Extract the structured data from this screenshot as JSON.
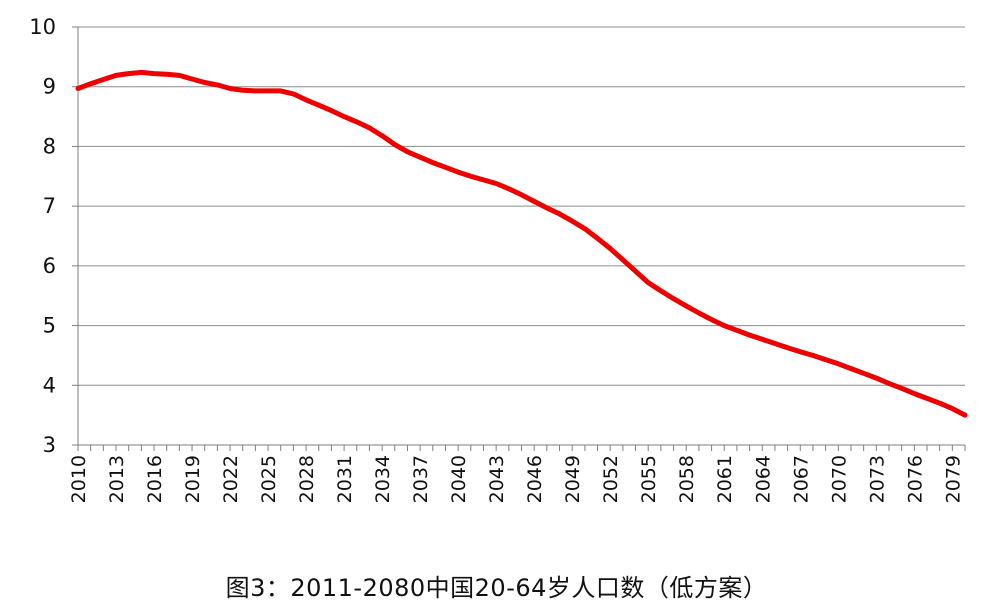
{
  "caption": "图3：2011-2080中国20-64岁人口数（低方案）",
  "colors": {
    "line": "#ee0000",
    "grid": "#8c8c8c",
    "axis": "#7f7f7f",
    "text": "#111111"
  },
  "chart_data": {
    "type": "line",
    "title": "",
    "xlabel": "",
    "ylabel": "",
    "ylim": [
      3,
      10
    ],
    "yticks": [
      3,
      4,
      5,
      6,
      7,
      8,
      9,
      10
    ],
    "xticks": [
      2010,
      2013,
      2016,
      2019,
      2022,
      2025,
      2028,
      2031,
      2034,
      2037,
      2040,
      2043,
      2046,
      2049,
      2052,
      2055,
      2058,
      2061,
      2064,
      2067,
      2070,
      2073,
      2076,
      2079
    ],
    "xlim": [
      2010,
      2080
    ],
    "grid": true,
    "legend": "none",
    "series": [
      {
        "name": "",
        "x": [
          2010,
          2011,
          2012,
          2013,
          2014,
          2015,
          2016,
          2017,
          2018,
          2019,
          2020,
          2021,
          2022,
          2023,
          2024,
          2025,
          2026,
          2027,
          2028,
          2029,
          2030,
          2031,
          2032,
          2033,
          2034,
          2035,
          2036,
          2037,
          2038,
          2039,
          2040,
          2041,
          2042,
          2043,
          2044,
          2045,
          2046,
          2047,
          2048,
          2049,
          2050,
          2051,
          2052,
          2053,
          2054,
          2055,
          2056,
          2057,
          2058,
          2059,
          2060,
          2061,
          2062,
          2063,
          2064,
          2065,
          2066,
          2067,
          2068,
          2069,
          2070,
          2071,
          2072,
          2073,
          2074,
          2075,
          2076,
          2077,
          2078,
          2079,
          2080
        ],
        "values": [
          8.97,
          9.05,
          9.12,
          9.19,
          9.22,
          9.24,
          9.22,
          9.21,
          9.19,
          9.13,
          9.07,
          9.03,
          8.97,
          8.94,
          8.93,
          8.93,
          8.93,
          8.88,
          8.78,
          8.69,
          8.6,
          8.5,
          8.41,
          8.31,
          8.18,
          8.03,
          7.91,
          7.82,
          7.73,
          7.65,
          7.57,
          7.5,
          7.44,
          7.38,
          7.29,
          7.19,
          7.08,
          6.97,
          6.87,
          6.75,
          6.62,
          6.46,
          6.29,
          6.1,
          5.91,
          5.72,
          5.58,
          5.45,
          5.33,
          5.21,
          5.1,
          5.0,
          4.92,
          4.84,
          4.77,
          4.7,
          4.63,
          4.56,
          4.5,
          4.43,
          4.36,
          4.28,
          4.2,
          4.12,
          4.03,
          3.95,
          3.86,
          3.78,
          3.7,
          3.61,
          3.5
        ]
      }
    ]
  }
}
